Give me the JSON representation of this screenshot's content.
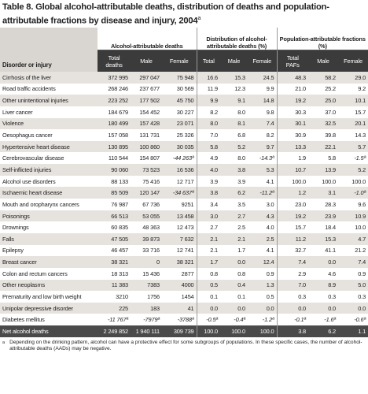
{
  "title": "Table 8. Global alcohol-attributable deaths, distribution of deaths and population-attributable fractions by disease and injury, 2004",
  "title_note": "a",
  "table": {
    "group_headers": [
      "Alcohol-attributable deaths",
      "Distribution of alcohol-attributable deaths (%)",
      "Population-attributable fractions (%)"
    ],
    "columns": [
      "Disorder or injury",
      "Total deaths",
      "Male",
      "Female",
      "Total",
      "Male",
      "Female",
      "Total PAFs",
      "Male",
      "Female"
    ],
    "rows": [
      {
        "label": "Cirrhosis of the liver",
        "cells": [
          "372 995",
          "297 047",
          "75 948",
          "16.6",
          "15.3",
          "24.5",
          "48.3",
          "58.2",
          "29.0"
        ]
      },
      {
        "label": "Road traffic accidents",
        "cells": [
          "268 246",
          "237 677",
          "30 569",
          "11.9",
          "12.3",
          "9.9",
          "21.0",
          "25.2",
          "9.2"
        ]
      },
      {
        "label": "Other unintentional injuries",
        "cells": [
          "223 252",
          "177 502",
          "45 750",
          "9.9",
          "9.1",
          "14.8",
          "19.2",
          "25.0",
          "10.1"
        ]
      },
      {
        "label": "Liver cancer",
        "cells": [
          "184 679",
          "154 452",
          "30 227",
          "8.2",
          "8.0",
          "9.8",
          "30.3",
          "37.0",
          "15.7"
        ]
      },
      {
        "label": "Violence",
        "cells": [
          "180 499",
          "157 428",
          "23 071",
          "8.0",
          "8.1",
          "7.4",
          "30.1",
          "32.5",
          "20.1"
        ]
      },
      {
        "label": "Oesophagus cancer",
        "cells": [
          "157 058",
          "131 731",
          "25 326",
          "7.0",
          "6.8",
          "8.2",
          "30.9",
          "39.8",
          "14.3"
        ]
      },
      {
        "label": "Hypertensive heart disease",
        "cells": [
          "130 895",
          "100 860",
          "30 035",
          "5.8",
          "5.2",
          "9.7",
          "13.3",
          "22.1",
          "5.7"
        ]
      },
      {
        "label": "Cerebrovascular disease",
        "cells": [
          "110 544",
          "154 807",
          "-44 263ª",
          "4.9",
          "8.0",
          "-14.3ª",
          "1.9",
          "5.8",
          "-1.5ª"
        ]
      },
      {
        "label": "Self-inflicted injuries",
        "cells": [
          "90 060",
          "73 523",
          "16 536",
          "4.0",
          "3.8",
          "5.3",
          "10.7",
          "13.9",
          "5.2"
        ]
      },
      {
        "label": "Alcohol use disorders",
        "cells": [
          "88 133",
          "75 416",
          "12 717",
          "3.9",
          "3.9",
          "4.1",
          "100.0",
          "100.0",
          "100.0"
        ]
      },
      {
        "label": "Ischaemic heart disease",
        "cells": [
          "85 509",
          "120 147",
          "-34 637ª",
          "3.8",
          "6.2",
          "-11.2ª",
          "1.2",
          "3.1",
          "-1.0ª"
        ]
      },
      {
        "label": "Mouth and oropharynx cancers",
        "cells": [
          "76 987",
          "67 736",
          "9251",
          "3.4",
          "3.5",
          "3.0",
          "23.0",
          "28.3",
          "9.6"
        ]
      },
      {
        "label": "Poisonings",
        "cells": [
          "66 513",
          "53 055",
          "13 458",
          "3.0",
          "2.7",
          "4.3",
          "19.2",
          "23.9",
          "10.9"
        ]
      },
      {
        "label": "Drownings",
        "cells": [
          "60 835",
          "48 363",
          "12 473",
          "2.7",
          "2.5",
          "4.0",
          "15.7",
          "18.4",
          "10.0"
        ]
      },
      {
        "label": "Falls",
        "cells": [
          "47 505",
          "39 873",
          "7 632",
          "2.1",
          "2.1",
          "2.5",
          "11.2",
          "15.3",
          "4.7"
        ]
      },
      {
        "label": "Epilepsy",
        "cells": [
          "46 457",
          "33 716",
          "12 741",
          "2.1",
          "1.7",
          "4.1",
          "32.7",
          "41.1",
          "21.2"
        ]
      },
      {
        "label": "Breast cancer",
        "cells": [
          "38 321",
          "0",
          "38 321",
          "1.7",
          "0.0",
          "12.4",
          "7.4",
          "0.0",
          "7.4"
        ]
      },
      {
        "label": "Colon and rectum cancers",
        "cells": [
          "18 313",
          "15 436",
          "2877",
          "0.8",
          "0.8",
          "0.9",
          "2.9",
          "4.6",
          "0.9"
        ]
      },
      {
        "label": "Other neoplasms",
        "cells": [
          "11 383",
          "7383",
          "4000",
          "0.5",
          "0.4",
          "1.3",
          "7.0",
          "8.9",
          "5.0"
        ]
      },
      {
        "label": "Prematurity and low birth weight",
        "cells": [
          "3210",
          "1756",
          "1454",
          "0.1",
          "0.1",
          "0.5",
          "0.3",
          "0.3",
          "0.3"
        ]
      },
      {
        "label": "Unipolar depressive disorder",
        "cells": [
          "225",
          "183",
          "41",
          "0.0",
          "0.0",
          "0.0",
          "0.0",
          "0.0",
          "0.0"
        ]
      },
      {
        "label": "Diabetes mellitus",
        "cells": [
          "-11 767ª",
          "-7979ª",
          "-3788ª",
          "-0.5ª",
          "-0.4ª",
          "-1.2ª",
          "-0.1ª",
          "-1.6ª",
          "-0.6ª"
        ]
      }
    ],
    "total_row": {
      "label": "Net alcohol deaths",
      "cells": [
        "2 249 852",
        "1 940 111",
        "309 739",
        "100.0",
        "100.0",
        "100.0",
        "3.8",
        "6.2",
        "1.1"
      ]
    }
  },
  "footnote": {
    "marker": "a",
    "text": "Depending on the drinking pattern, alcohol can have a protective effect for some subgroups of populations. In these specific cases, the number of alcohol-attributable deaths (AADs) may be negative."
  }
}
